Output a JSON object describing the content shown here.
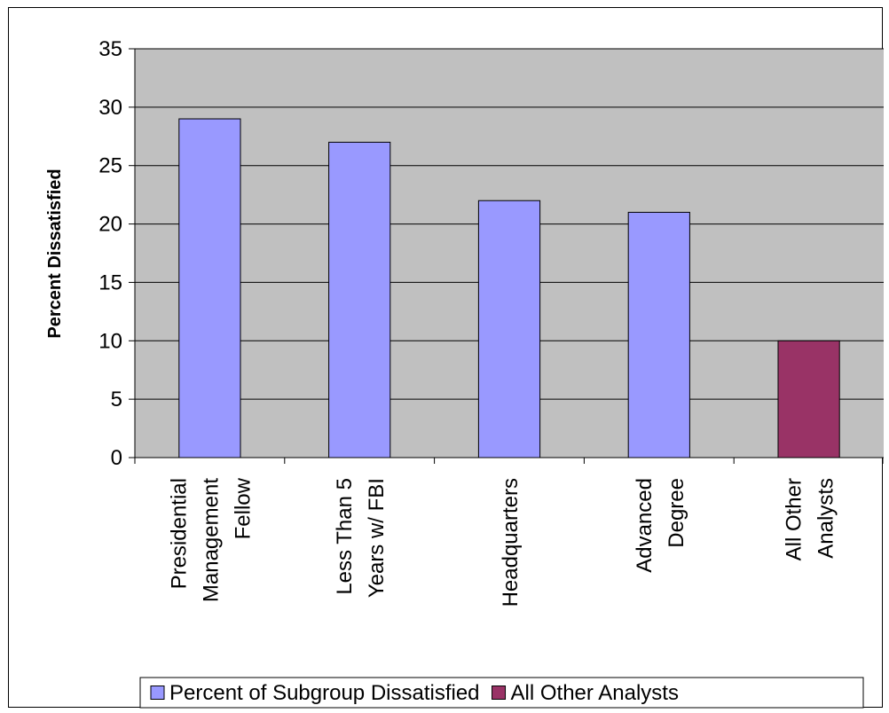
{
  "chart_data": {
    "type": "bar",
    "title": "",
    "xlabel": "",
    "ylabel": "Percent Dissatisfied",
    "ylim": [
      0,
      35
    ],
    "yticks": [
      0,
      5,
      10,
      15,
      20,
      25,
      30,
      35
    ],
    "grid": true,
    "legend_position": "bottom",
    "plot_background": "#C0C0C0",
    "categories": [
      [
        "Presidential",
        "Management",
        "Fellow"
      ],
      [
        "Less Than 5",
        "Years w/ FBI"
      ],
      [
        "Headquarters"
      ],
      [
        "Advanced",
        "Degree"
      ],
      [
        "All Other",
        "Analysts"
      ]
    ],
    "series": [
      {
        "name": "Percent of Subgroup Dissatisfied",
        "color": "#9999FF",
        "values": [
          29,
          27,
          22,
          21,
          null
        ]
      },
      {
        "name": "All Other Analysts",
        "color": "#993366",
        "values": [
          null,
          null,
          null,
          null,
          10
        ]
      }
    ]
  }
}
